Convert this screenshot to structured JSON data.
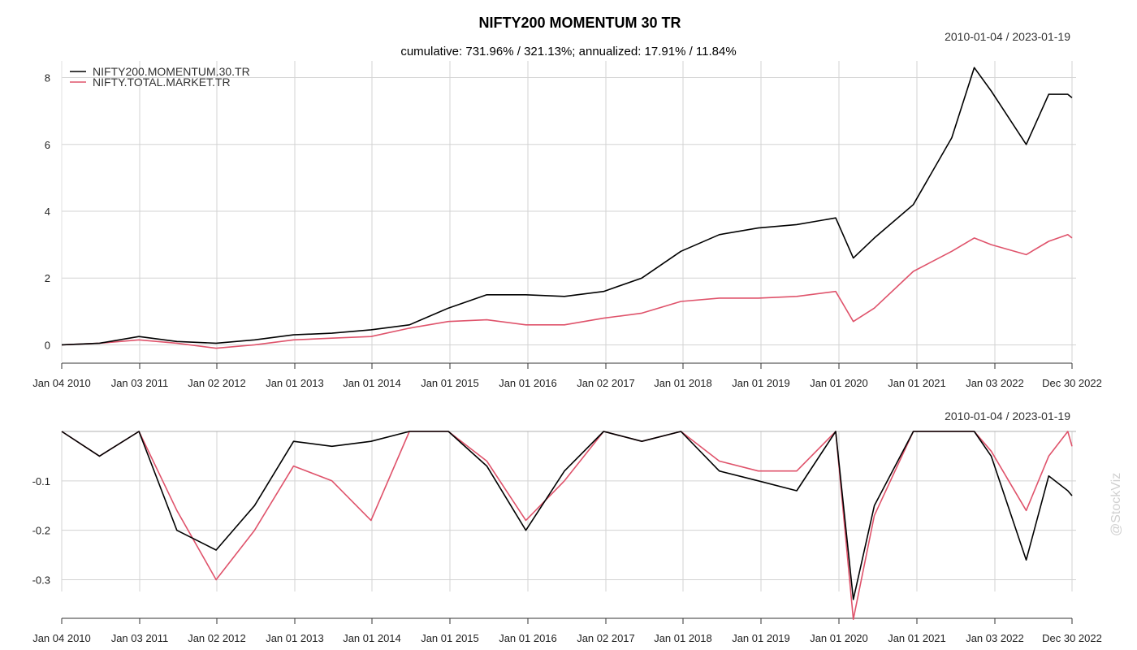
{
  "chart_data": {
    "type": "line",
    "title": "NIFTY200 MOMENTUM 30 TR",
    "subtitle": "cumulative: 731.96% / 321.13%; annualized: 17.91% / 11.84%",
    "date_range": "2010-01-04 / 2023-01-19",
    "watermark": "@StockViz",
    "x_tick_labels": [
      "Jan 04 2010",
      "Jan 03 2011",
      "Jan 02 2012",
      "Jan 01 2013",
      "Jan 01 2014",
      "Jan 01 2015",
      "Jan 01 2016",
      "Jan 02 2017",
      "Jan 01 2018",
      "Jan 01 2019",
      "Jan 01 2020",
      "Jan 01 2021",
      "Jan 03 2022",
      "Dec 30 2022"
    ],
    "x": [
      "2010-01-04",
      "2010-07-01",
      "2011-01-03",
      "2011-07-01",
      "2012-01-02",
      "2012-07-01",
      "2013-01-01",
      "2013-07-01",
      "2014-01-01",
      "2014-07-01",
      "2015-01-01",
      "2015-07-01",
      "2016-01-01",
      "2016-07-01",
      "2017-01-02",
      "2017-07-01",
      "2018-01-01",
      "2018-07-01",
      "2019-01-01",
      "2019-07-01",
      "2020-01-01",
      "2020-03-24",
      "2020-07-01",
      "2021-01-01",
      "2021-07-01",
      "2021-10-15",
      "2022-01-03",
      "2022-06-17",
      "2022-10-01",
      "2022-12-30",
      "2023-01-19"
    ],
    "panels": [
      {
        "name": "cumulative",
        "ylim": [
          -0.5,
          8.5
        ],
        "y_ticks": [
          0,
          2,
          4,
          6,
          8
        ],
        "legend": "top-left",
        "series": [
          {
            "name": "NIFTY200.MOMENTUM.30.TR",
            "color": "#000000",
            "values": [
              0.0,
              0.05,
              0.25,
              0.1,
              0.05,
              0.15,
              0.3,
              0.35,
              0.45,
              0.6,
              1.1,
              1.5,
              1.5,
              1.45,
              1.6,
              2.0,
              2.8,
              3.3,
              3.5,
              3.6,
              3.8,
              2.6,
              3.2,
              4.2,
              6.2,
              8.3,
              7.6,
              6.0,
              7.5,
              7.5,
              7.4
            ]
          },
          {
            "name": "NIFTY.TOTAL.MARKET.TR",
            "color": "#DF536B",
            "values": [
              0.0,
              0.05,
              0.15,
              0.05,
              -0.1,
              0.0,
              0.15,
              0.2,
              0.25,
              0.5,
              0.7,
              0.75,
              0.6,
              0.6,
              0.8,
              0.95,
              1.3,
              1.4,
              1.4,
              1.45,
              1.6,
              0.7,
              1.1,
              2.2,
              2.8,
              3.2,
              3.0,
              2.7,
              3.1,
              3.3,
              3.2
            ]
          }
        ]
      },
      {
        "name": "drawdown",
        "ylim": [
          -0.36,
          0.0
        ],
        "y_ticks": [
          -0.1,
          -0.2,
          -0.3
        ],
        "series": [
          {
            "name": "NIFTY200.MOMENTUM.30.TR",
            "color": "#000000",
            "values": [
              0.0,
              -0.05,
              0.0,
              -0.2,
              -0.24,
              -0.15,
              -0.02,
              -0.03,
              -0.02,
              0.0,
              0.0,
              -0.07,
              -0.2,
              -0.08,
              0.0,
              -0.02,
              0.0,
              -0.08,
              -0.1,
              -0.12,
              0.0,
              -0.34,
              -0.15,
              0.0,
              0.0,
              0.0,
              -0.05,
              -0.26,
              -0.09,
              -0.12,
              -0.13
            ]
          },
          {
            "name": "NIFTY.TOTAL.MARKET.TR",
            "color": "#DF536B",
            "values": [
              0.0,
              -0.05,
              0.0,
              -0.16,
              -0.3,
              -0.2,
              -0.07,
              -0.1,
              -0.18,
              0.0,
              0.0,
              -0.06,
              -0.18,
              -0.1,
              0.0,
              -0.02,
              0.0,
              -0.06,
              -0.08,
              -0.08,
              0.0,
              -0.38,
              -0.17,
              0.0,
              0.0,
              0.0,
              -0.04,
              -0.16,
              -0.05,
              0.0,
              -0.03
            ]
          }
        ]
      }
    ]
  }
}
